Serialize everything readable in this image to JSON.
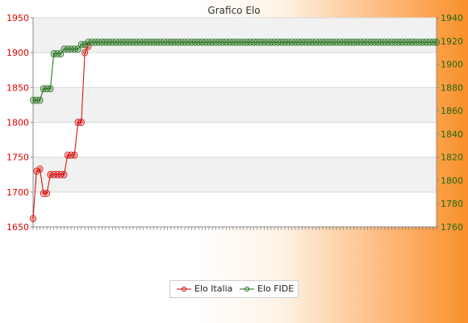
{
  "chart_data": {
    "type": "line",
    "title": "Grafico Elo",
    "legend_position": "bottom-center",
    "grid": true,
    "y_left": {
      "range": [
        1650,
        1950
      ],
      "ticks": [
        1650,
        1700,
        1750,
        1800,
        1850,
        1900,
        1950
      ],
      "color": "#e00000"
    },
    "y_right": {
      "range": [
        1760,
        1940
      ],
      "ticks": [
        1760,
        1780,
        1800,
        1820,
        1840,
        1860,
        1880,
        1900,
        1920,
        1940
      ],
      "color": "#1a6a10"
    },
    "x_count": 118,
    "series": [
      {
        "name": "Elo Italia",
        "axis": "left",
        "color": "#d40000",
        "points": [
          [
            0,
            1662
          ],
          [
            1,
            1730
          ],
          [
            2,
            1733
          ],
          [
            3,
            1698
          ],
          [
            4,
            1698
          ],
          [
            5,
            1725
          ],
          [
            6,
            1725
          ],
          [
            7,
            1725
          ],
          [
            8,
            1725
          ],
          [
            9,
            1725
          ],
          [
            10,
            1753
          ],
          [
            11,
            1753
          ],
          [
            12,
            1753
          ],
          [
            13,
            1800
          ],
          [
            14,
            1800
          ],
          [
            15,
            1900
          ],
          [
            16,
            1909
          ]
        ]
      },
      {
        "name": "Elo FIDE",
        "axis": "right",
        "color": "#1a6a10",
        "values": [
          1869,
          1869,
          1869,
          1879,
          1879,
          1879,
          1909,
          1909,
          1909,
          1913,
          1913,
          1913,
          1913,
          1913,
          1917,
          1917,
          1919,
          1919,
          1919,
          1919,
          1919,
          1919,
          1919,
          1919,
          1919,
          1919,
          1919,
          1919,
          1919,
          1919,
          1919,
          1919,
          1919,
          1919,
          1919,
          1919,
          1919,
          1919,
          1919,
          1919,
          1919,
          1919,
          1919,
          1919,
          1919,
          1919,
          1919,
          1919,
          1919,
          1919,
          1919,
          1919,
          1919,
          1919,
          1919,
          1919,
          1919,
          1919,
          1919,
          1919,
          1919,
          1919,
          1919,
          1919,
          1919,
          1919,
          1919,
          1919,
          1919,
          1919,
          1919,
          1919,
          1919,
          1919,
          1919,
          1919,
          1919,
          1919,
          1919,
          1919,
          1919,
          1919,
          1919,
          1919,
          1919,
          1919,
          1919,
          1919,
          1919,
          1919,
          1919,
          1919,
          1919,
          1919,
          1919,
          1919,
          1919,
          1919,
          1919,
          1919,
          1919,
          1919,
          1919,
          1919,
          1919,
          1919,
          1919,
          1919,
          1919,
          1919,
          1919,
          1919,
          1919,
          1919,
          1919,
          1919,
          1919,
          1919
        ]
      }
    ]
  },
  "legend": {
    "italia": "Elo Italia",
    "fide": "Elo FIDE"
  }
}
